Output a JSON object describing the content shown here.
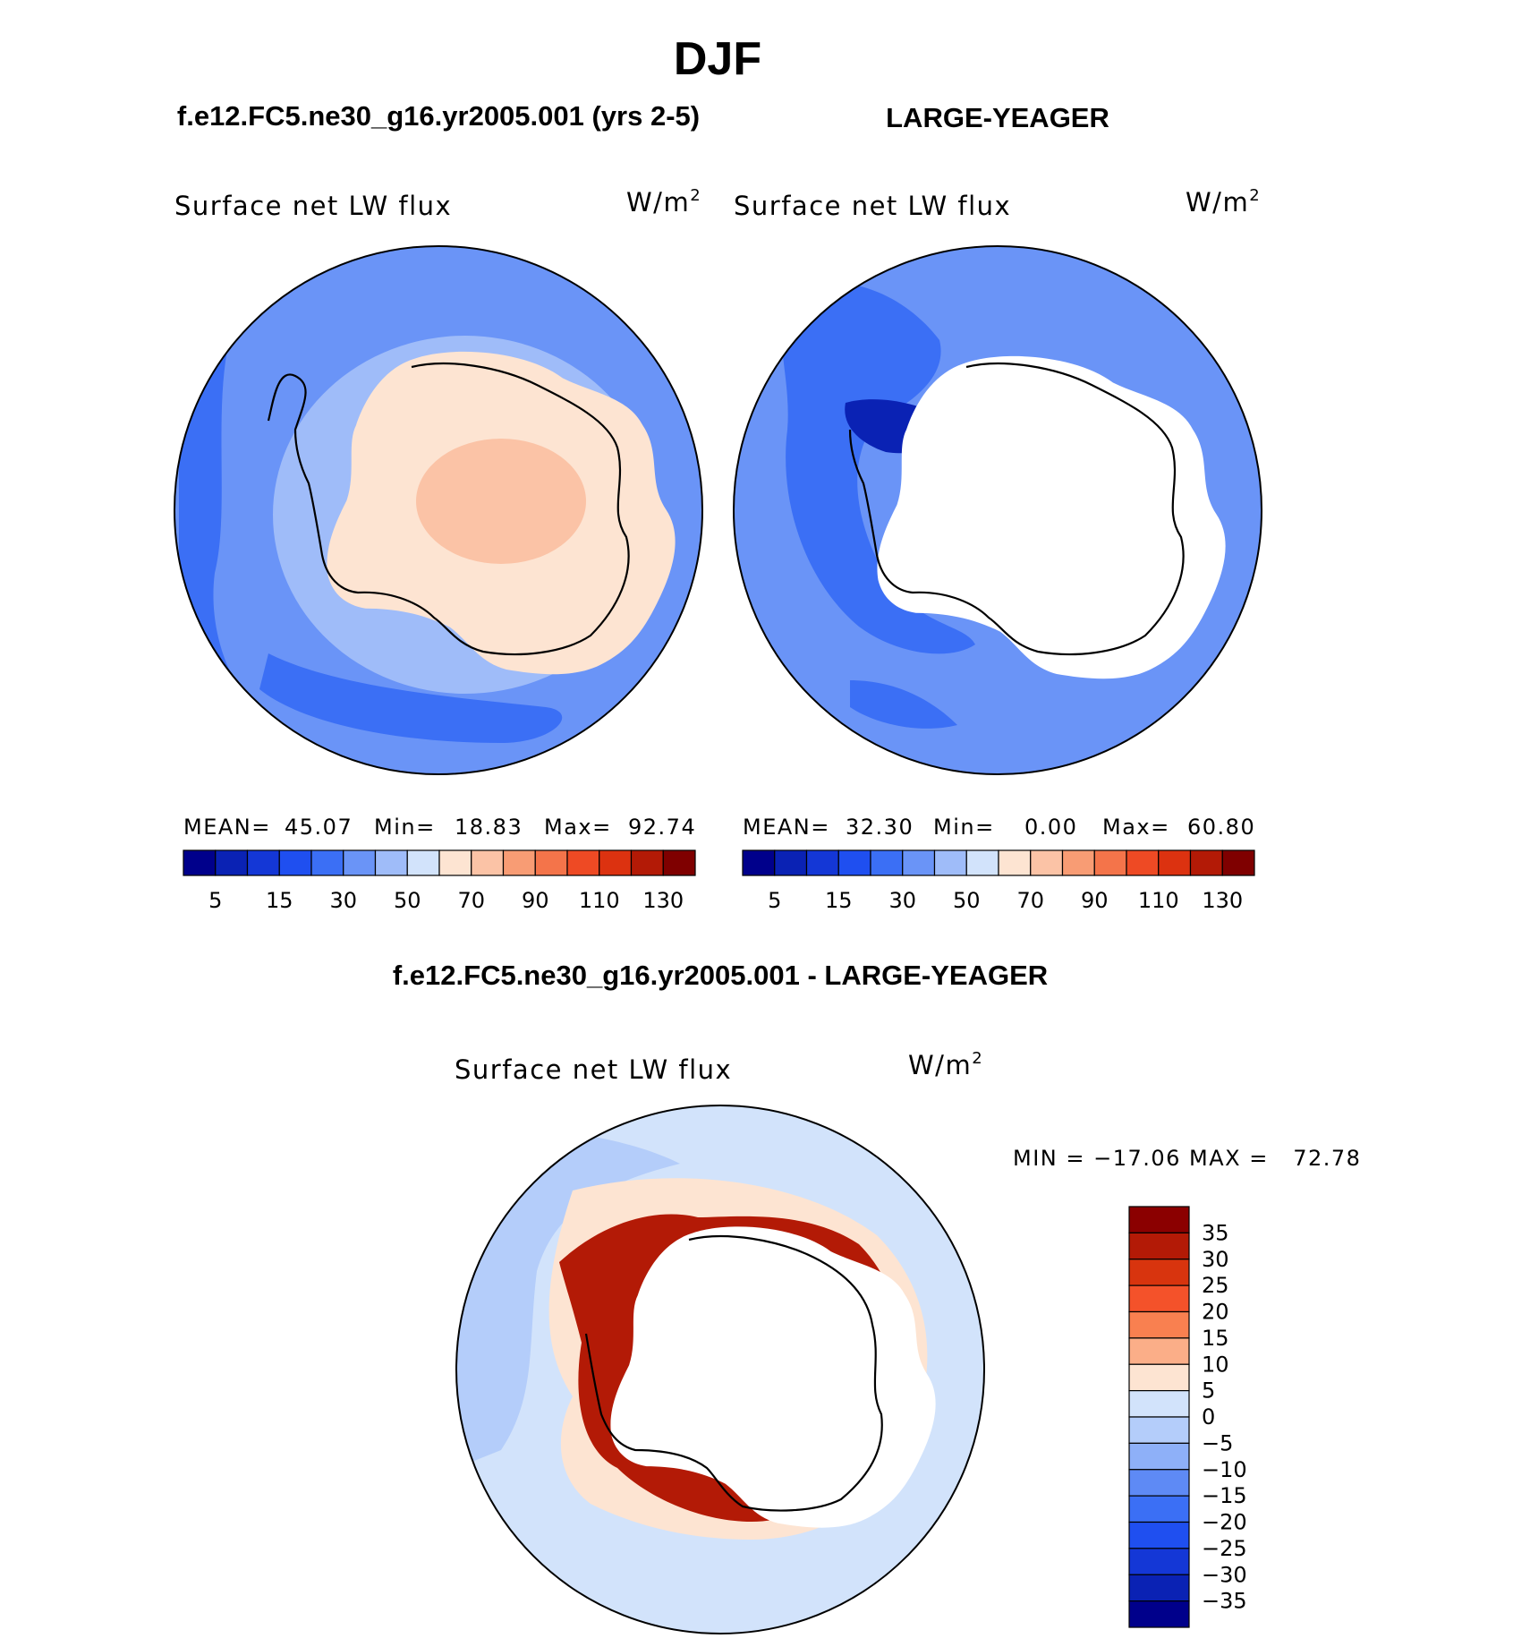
{
  "title": "DJF",
  "panels": [
    {
      "header": "f.e12.FC5.ne30_g16.yr2005.001 (yrs 2-5)",
      "variable": "Surface net LW flux",
      "units": "W/m",
      "units_sup": "2",
      "stats": {
        "mean_label": "MEAN=",
        "mean": "45.07",
        "min_label": "Min=",
        "min": "18.83",
        "max_label": "Max=",
        "max": "92.74"
      },
      "field": "model"
    },
    {
      "header": "LARGE-YEAGER",
      "variable": "Surface net LW flux",
      "units": "W/m",
      "units_sup": "2",
      "stats": {
        "mean_label": "MEAN=",
        "mean": "32.30",
        "min_label": "Min=",
        "min": "0.00",
        "max_label": "Max=",
        "max": "60.80"
      },
      "field": "obs"
    }
  ],
  "colorbar_abs": {
    "colors": [
      "#00008b",
      "#0a22b4",
      "#1437d6",
      "#1f4ff0",
      "#3b6ff5",
      "#6a94f7",
      "#9fbcf9",
      "#d2e3fb",
      "#fde4d2",
      "#fbc3a6",
      "#f89c74",
      "#f4744a",
      "#ee4a24",
      "#dc3210",
      "#b31a06",
      "#7f0000"
    ],
    "tick_labels": [
      "5",
      "15",
      "30",
      "50",
      "70",
      "90",
      "110",
      "130"
    ]
  },
  "difference": {
    "header": "f.e12.FC5.ne30_g16.yr2005.001 - LARGE-YEAGER",
    "variable": "Surface net LW flux",
    "units": "W/m",
    "units_sup": "2",
    "minmax": "MIN = −17.06 MAX =   72.78",
    "colorbar": {
      "colors": [
        "#8b0000",
        "#b31a06",
        "#d8340e",
        "#f4522a",
        "#f98050",
        "#fbae88",
        "#fde4d2",
        "#d2e3fb",
        "#b4cdfa",
        "#8eb0f8",
        "#5e8af5",
        "#3b6ff5",
        "#1f4ff0",
        "#1437d6",
        "#0a22b4",
        "#00008b"
      ],
      "tick_labels": [
        "35",
        "30",
        "25",
        "20",
        "15",
        "10",
        "5",
        "0",
        "−5",
        "−10",
        "−15",
        "−20",
        "−25",
        "−30",
        "−35"
      ]
    }
  },
  "map_colors": {
    "ocean_a": "#6a94f7",
    "ocean_b": "#3b6ff5",
    "ocean_c": "#9fbcf9",
    "land_a": "#fde4d2",
    "land_b": "#fbc3a6",
    "diff_ocean": "#d2e3fb",
    "diff_ocean_b": "#b4cdfa",
    "diff_warm": "#fde4d2",
    "diff_hot": "#b31a06",
    "coast": "#000000",
    "masked": "#ffffff"
  }
}
